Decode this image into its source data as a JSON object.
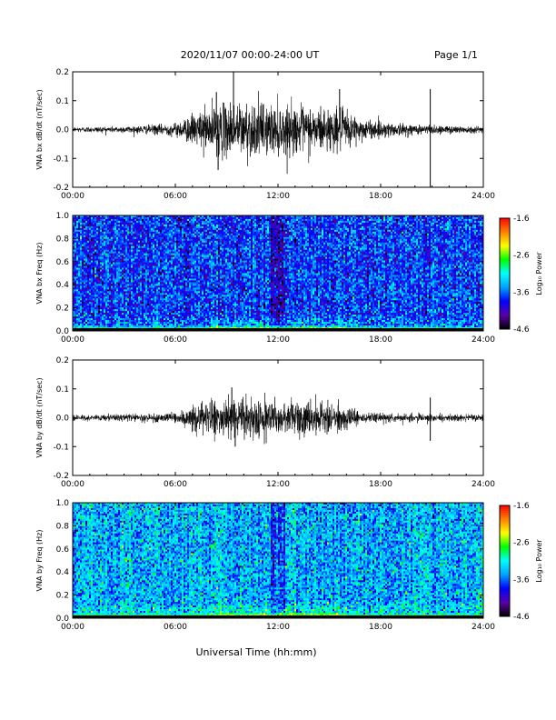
{
  "header": {
    "date_range": "2020/11/07  00:00-24:00 UT",
    "page": "Page 1/1"
  },
  "x_axis": {
    "label": "Universal Time (hh:mm)",
    "ticks": [
      "00:00",
      "06:00",
      "12:00",
      "18:00",
      "24:00"
    ]
  },
  "colorbar": {
    "label": "Log₁₀ Power",
    "ticks": [
      "-1.6",
      "-2.6",
      "-3.6",
      "-4.6"
    ],
    "range": [
      -4.6,
      -1.6
    ],
    "colormap": [
      "#000000",
      "#5a00aa",
      "#0000ff",
      "#00a0ff",
      "#00ffff",
      "#00ff00",
      "#ffff00",
      "#ff8000",
      "#ff0000"
    ]
  },
  "chart_data": [
    {
      "type": "line",
      "ylabel": "VNA bx dB/dt (nT/sec)",
      "yticks": [
        "0.2",
        "0.1",
        "0.0",
        "-0.1",
        "-0.2"
      ],
      "ylim": [
        -0.2,
        0.2
      ],
      "xlim": [
        0,
        24
      ],
      "x_unit": "hours UT",
      "envelope": {
        "x": [
          0,
          3,
          5,
          6,
          7,
          8,
          9,
          10,
          11,
          12,
          13,
          14,
          15,
          16,
          17,
          18,
          19,
          20,
          21,
          22,
          24
        ],
        "amplitude": [
          0.008,
          0.01,
          0.015,
          0.02,
          0.045,
          0.07,
          0.08,
          0.085,
          0.08,
          0.075,
          0.07,
          0.07,
          0.065,
          0.06,
          0.03,
          0.025,
          0.02,
          0.015,
          0.015,
          0.012,
          0.01
        ]
      },
      "spikes": [
        {
          "x": 9.4,
          "y": 0.2
        },
        {
          "x": 8.4,
          "y": 0.13
        },
        {
          "x": 15.6,
          "y": 0.14
        },
        {
          "x": 20.9,
          "y": 0.14
        },
        {
          "x": 20.9,
          "y": -0.2
        },
        {
          "x": 8.5,
          "y": -0.14
        }
      ]
    },
    {
      "type": "heatmap",
      "ylabel": "VNA bx Freq (Hz)",
      "yticks": [
        "1.0",
        "0.8",
        "0.6",
        "0.4",
        "0.2",
        "0.0"
      ],
      "ylim": [
        0,
        1.0
      ],
      "xlim": [
        0,
        24
      ],
      "z_unit": "log10 power",
      "background_level": -3.75,
      "low_freq_level": -2.6,
      "low_freq_peak": -1.9,
      "low_freq_peak_window_hours": [
        8,
        16
      ],
      "quiet_band_hours": [
        11.6,
        12.4
      ]
    },
    {
      "type": "line",
      "ylabel": "VNA by dB/dt (nT/sec)",
      "yticks": [
        "0.2",
        "0.1",
        "0.0",
        "-0.1",
        "-0.2"
      ],
      "ylim": [
        -0.2,
        0.2
      ],
      "xlim": [
        0,
        24
      ],
      "x_unit": "hours UT",
      "envelope": {
        "x": [
          0,
          3,
          5,
          6,
          7,
          8,
          9,
          10,
          11,
          12,
          13,
          14,
          15,
          16,
          17,
          18,
          20,
          22,
          24
        ],
        "amplitude": [
          0.008,
          0.01,
          0.012,
          0.015,
          0.035,
          0.05,
          0.06,
          0.06,
          0.055,
          0.05,
          0.05,
          0.05,
          0.045,
          0.035,
          0.015,
          0.012,
          0.012,
          0.01,
          0.01
        ]
      },
      "spikes": [
        {
          "x": 9.3,
          "y": 0.105
        },
        {
          "x": 20.9,
          "y": 0.07
        },
        {
          "x": 20.9,
          "y": -0.08
        },
        {
          "x": 9.5,
          "y": -0.1
        }
      ]
    },
    {
      "type": "heatmap",
      "ylabel": "VNA by Freq (Hz)",
      "yticks": [
        "1.0",
        "0.8",
        "0.6",
        "0.4",
        "0.2",
        "0.0"
      ],
      "ylim": [
        0,
        1.0
      ],
      "xlim": [
        0,
        24
      ],
      "z_unit": "log10 power",
      "background_level": -3.4,
      "low_freq_level": -2.6,
      "low_freq_peak": -1.9,
      "low_freq_peak_window_hours": [
        8,
        16
      ],
      "quiet_band_hours": [
        11.6,
        12.4
      ]
    }
  ]
}
